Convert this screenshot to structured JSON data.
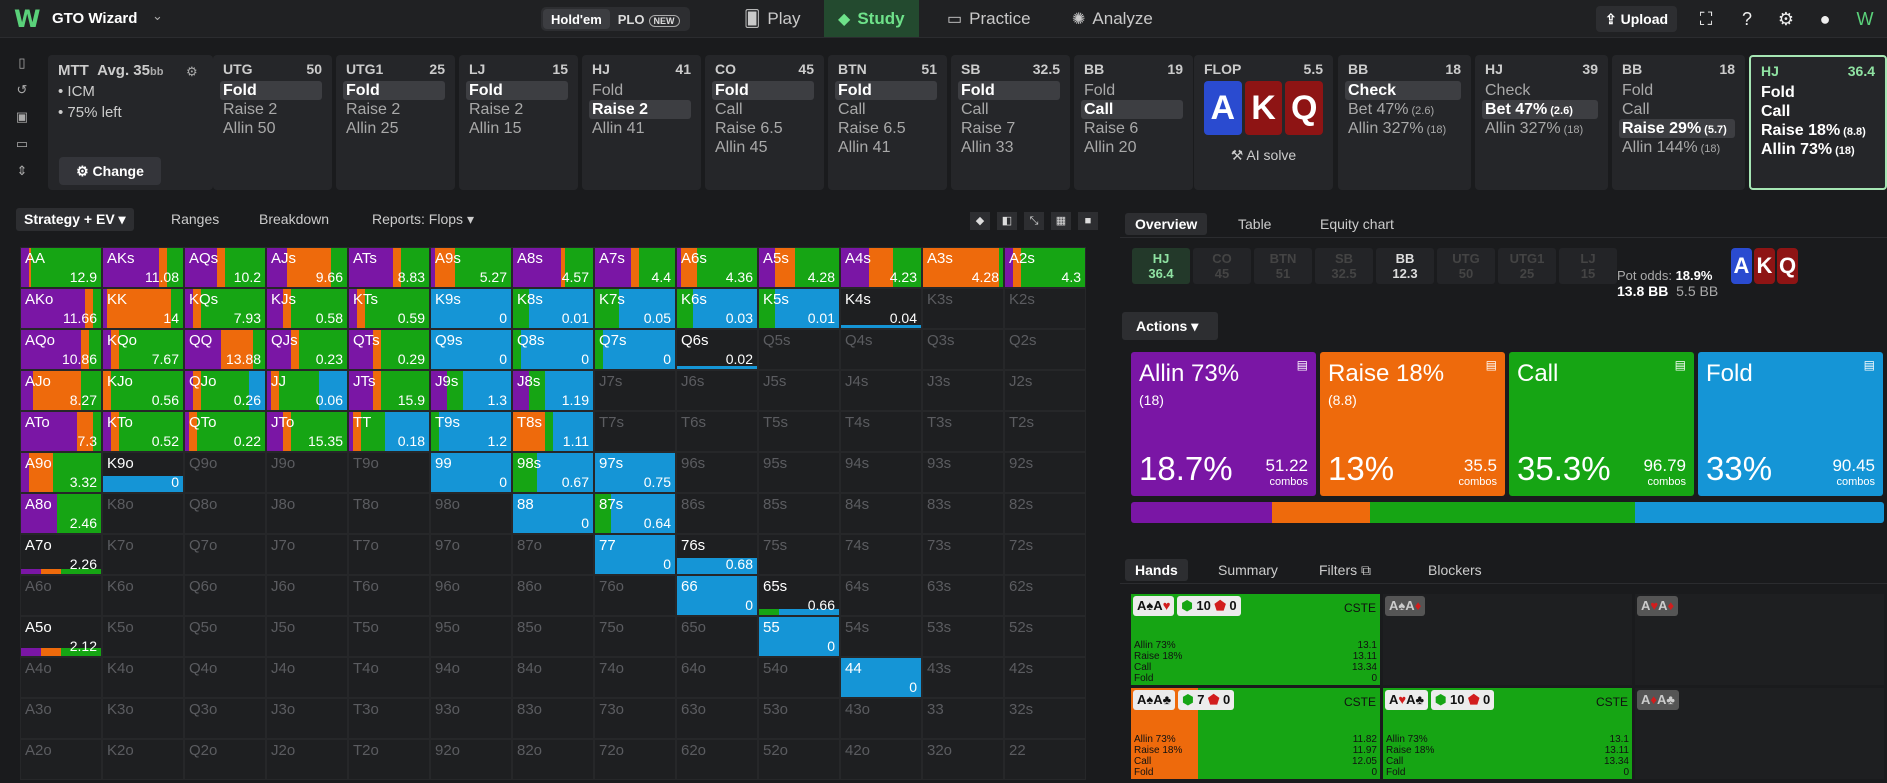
{
  "app": {
    "name": "GTO Wizard",
    "logo": "W"
  },
  "modes": {
    "holdem": "Hold'em",
    "plo": "PLO",
    "plo_badge": "NEW"
  },
  "nav": [
    {
      "label": "Play",
      "icon": "cards-icon"
    },
    {
      "label": "Study",
      "icon": "graduation-icon"
    },
    {
      "label": "Practice",
      "icon": "gamepad-icon"
    },
    {
      "label": "Analyze",
      "icon": "bulb-icon"
    }
  ],
  "upload_label": "Upload",
  "mtt": {
    "title": "MTT",
    "avg": "Avg. 35",
    "avg_unit": "bb",
    "line1": "• ICM",
    "line2": "• 75% left",
    "change": "Change"
  },
  "positions": [
    {
      "pos": "UTG",
      "stack": "50",
      "options": [
        "Fold",
        "Raise 2",
        "Allin 50"
      ],
      "sel": 0
    },
    {
      "pos": "UTG1",
      "stack": "25",
      "options": [
        "Fold",
        "Raise 2",
        "Allin 25"
      ],
      "sel": 0
    },
    {
      "pos": "LJ",
      "stack": "15",
      "options": [
        "Fold",
        "Raise 2",
        "Allin 15"
      ],
      "sel": 0
    },
    {
      "pos": "HJ",
      "stack": "41",
      "options": [
        "Fold",
        "Raise 2",
        "Allin 41"
      ],
      "sel": 1
    },
    {
      "pos": "CO",
      "stack": "45",
      "options": [
        "Fold",
        "Call",
        "Raise 6.5",
        "Allin 45"
      ],
      "sel": 0
    },
    {
      "pos": "BTN",
      "stack": "51",
      "options": [
        "Fold",
        "Call",
        "Raise 6.5",
        "Allin 41"
      ],
      "sel": 0
    },
    {
      "pos": "SB",
      "stack": "32.5",
      "options": [
        "Fold",
        "Call",
        "Raise 7",
        "Allin 33"
      ],
      "sel": 0
    },
    {
      "pos": "BB",
      "stack": "19",
      "options": [
        "Fold",
        "Call",
        "Raise 6",
        "Allin 20"
      ],
      "sel": 1
    }
  ],
  "flop": {
    "label": "FLOP",
    "pot": "5.5",
    "cards": [
      "A",
      "K",
      "Q"
    ],
    "ai": "AI solve"
  },
  "streets": [
    {
      "pos": "BB",
      "stack": "18",
      "options": [
        {
          "t": "Check"
        },
        {
          "t": "Bet 47%",
          "s": "(2.6)"
        },
        {
          "t": "Allin 327%",
          "s": "(18)"
        }
      ],
      "sel": 0
    },
    {
      "pos": "HJ",
      "stack": "39",
      "options": [
        {
          "t": "Check"
        },
        {
          "t": "Bet 47%",
          "s": "(2.6)"
        },
        {
          "t": "Allin 327%",
          "s": "(18)"
        }
      ],
      "sel": 1
    },
    {
      "pos": "BB",
      "stack": "18",
      "options": [
        {
          "t": "Fold"
        },
        {
          "t": "Call"
        },
        {
          "t": "Raise 29%",
          "s": "(5.7)"
        },
        {
          "t": "Allin 144%",
          "s": "(18)"
        }
      ],
      "sel": 2
    },
    {
      "pos": "HJ",
      "stack": "36.4",
      "options": [
        {
          "t": "Fold"
        },
        {
          "t": "Call"
        },
        {
          "t": "Raise 18%",
          "s": "(8.8)"
        },
        {
          "t": "Allin 73%",
          "s": "(18)"
        }
      ],
      "sel": -1
    }
  ],
  "left_tabs": {
    "strategy": "Strategy + EV",
    "ranges": "Ranges",
    "breakdown": "Breakdown",
    "reports": "Reports: Flops"
  },
  "colors": {
    "allin": "#7a16a5",
    "raise": "#ee6a0c",
    "call": "#16a514",
    "fold": "#1595d6"
  },
  "grid": [
    [
      "AA|12.9|a10r2c88f0",
      "AKs|11.08|a70r10c20f0",
      "AQs|10.2|a40r10c50f0",
      "AJs|9.66|a25r55c20f0",
      "ATs|8.83|a55r10c35f0",
      "A9s|5.27|a5r25c70f0",
      "A8s|4.57|a60r5c35f0",
      "A7s|4.4|a45r10c45f0",
      "A6s|4.36|a5r20c75f0",
      "A5s|4.28|a20r25c55f0",
      "A4s|4.23|a35r30c35f0",
      "A3s|4.28|a0r95c5f0",
      "A2s|4.3|a10r10c80f0"
    ],
    [
      "AKo|11.66|a80r10c10f0",
      "KK|14|a5r80c15f0",
      "KQs|7.93|a10r10c80f0",
      "KJs|0.58|a20r10c70f0",
      "KTs|0.59|a10r10c80f0",
      "K9s|0|a0r0c0f100",
      "K8s|0.01|a0r0c20f80",
      "K7s|0.05|a0r0c30f70",
      "K6s|0.03|a0r0c20f80",
      "K5s|0.01|a0r0c20f80",
      "K4s|0.04|x",
      "K3s||d",
      "K2s||d"
    ],
    [
      "AQo|10.86|a75r10c15f0",
      "KQo|7.67|a10r10c80f0",
      "QQ|13.88|a45r40c15f0",
      "QJs|0.23|a30r10c60f0",
      "QTs|0.29|a30r10c60f0",
      "Q9s|0|a0r0c0f100",
      "Q8s|0|a0r0c10f90",
      "Q7s|0|a0r0c10f90",
      "Q6s|0.02|x",
      "Q5s||d",
      "Q4s||d",
      "Q3s||d",
      "Q2s||d"
    ],
    [
      "AJo|8.27|a15r60c25f0",
      "KJo|0.56|a0r10c90f0",
      "QJo|0.26|a10r10c60f20",
      "JJ|0.06|a5r10c50f35",
      "JTs|15.9|a30r10c60f0",
      "J9s|1.3|a20r0c20f60",
      "J8s|1.19|a20r0c20f60",
      "J7s||d",
      "J6s||d",
      "J5s||d",
      "J4s||d",
      "J3s||d",
      "J2s||d"
    ],
    [
      "ATo|7.3|a70r20c10f0",
      "KTo|0.52|a10r10c80f0",
      "QTo|0.22|a5r10c85f0",
      "JTo|15.35|a20r10c70f0",
      "TT|0.18|a5r10c30f55",
      "T9s|1.2|a0r0c10f90",
      "T8s|1.11|a0r40c10f50",
      "T7s||d",
      "T6s||d",
      "T5s||d",
      "T4s||d",
      "T3s||d",
      "T2s||d"
    ],
    [
      "A9o|3.32|a10r30c60f0",
      "K9o|0|h",
      "Q9o||d",
      "J9o||d",
      "T9o||d",
      "99|0|a0r0c0f100",
      "98s|0.67|a0r0c30f70",
      "97s|0.75|a0r0c0f100",
      "96s||d",
      "95s||d",
      "94s||d",
      "93s||d",
      "92s||d"
    ],
    [
      "A8o|2.46|a45r0c55f0",
      "K8o||d",
      "Q8o||d",
      "J8o||d",
      "T8o||d",
      "98o||d",
      "88|0|a0r0c0f100",
      "87s|0.64|a0r0c20f80",
      "86s||d",
      "85s||d",
      "84s||d",
      "83s||d",
      "82s||d"
    ],
    [
      "A7o|2.26|s",
      "K7o||d",
      "Q7o||d",
      "J7o||d",
      "T7o||d",
      "97o||d",
      "87o||d",
      "77|0|a0r0c0f100",
      "76s|0.68|h2",
      "75s||d",
      "74s||d",
      "73s||d",
      "72s||d"
    ],
    [
      "A6o||d",
      "K6o||d",
      "Q6o||d",
      "J6o||d",
      "T6o||d",
      "96o||d",
      "86o||d",
      "76o||d",
      "66|0|a0r0c0f100",
      "65s|0.66|h3",
      "64s||d",
      "63s||d",
      "62s||d"
    ],
    [
      "A5o|2.12|s2",
      "K5o||d",
      "Q5o||d",
      "J5o||d",
      "T5o||d",
      "95o||d",
      "85o||d",
      "75o||d",
      "65o||d",
      "55|0|a0r0c0f100",
      "54s||d",
      "53s||d",
      "52s||d"
    ],
    [
      "A4o||d",
      "K4o||d",
      "Q4o||d",
      "J4o||d",
      "T4o||d",
      "94o||d",
      "84o||d",
      "74o||d",
      "64o||d",
      "54o||d",
      "44|0|a0r0c0f100",
      "43s||d",
      "42s||d"
    ],
    [
      "A3o||d",
      "K3o||d",
      "Q3o||d",
      "J3o||d",
      "T3o||d",
      "93o||d",
      "83o||d",
      "73o||d",
      "63o||d",
      "53o||d",
      "43o||d",
      "33||d",
      "32s||d"
    ],
    [
      "A2o||d",
      "K2o||d",
      "Q2o||d",
      "J2o||d",
      "T2o||d",
      "92o||d",
      "82o||d",
      "72o||d",
      "62o||d",
      "52o||d",
      "42o||d",
      "32o||d",
      "22||d"
    ]
  ],
  "right_tabs": {
    "overview": "Overview",
    "table": "Table",
    "equity": "Equity chart"
  },
  "pos_chips": [
    {
      "p": "HJ",
      "s": "36.4"
    },
    {
      "p": "CO",
      "s": "45"
    },
    {
      "p": "BTN",
      "s": "51"
    },
    {
      "p": "SB",
      "s": "32.5"
    },
    {
      "p": "BB",
      "s": "12.3"
    },
    {
      "p": "UTG",
      "s": "50"
    },
    {
      "p": "UTG1",
      "s": "25"
    },
    {
      "p": "LJ",
      "s": "15"
    }
  ],
  "pot": {
    "bb": "13.8 BB",
    "bb2": "5.5 BB",
    "odds_label": "Pot odds:",
    "odds": "18.9%"
  },
  "actions_label": "Actions",
  "actions": [
    {
      "t": "Allin 73%",
      "s": "(18)",
      "pct": "18.7%",
      "combos": "51.22",
      "c": "allin"
    },
    {
      "t": "Raise 18%",
      "s": "(8.8)",
      "pct": "13%",
      "combos": "35.5",
      "c": "raise"
    },
    {
      "t": "Call",
      "s": "",
      "pct": "35.3%",
      "combos": "96.79",
      "c": "call"
    },
    {
      "t": "Fold",
      "s": "",
      "pct": "33%",
      "combos": "90.45",
      "c": "fold"
    }
  ],
  "combos_label": "combos",
  "hands_tabs": {
    "hands": "Hands",
    "summary": "Summary",
    "filters": "Filters",
    "blockers": "Blockers"
  },
  "hand_cells": [
    {
      "cards": "A♠A♥",
      "eq": "10",
      "bl": "0",
      "tag": "CSTE",
      "lines": [
        [
          "Allin 73%",
          "13.1"
        ],
        [
          "Raise 18%",
          "13.11"
        ],
        [
          "Call",
          "13.34"
        ],
        [
          "Fold",
          "0"
        ]
      ],
      "mix": "c100"
    },
    {
      "cards": "A♠A♦",
      "gray": true
    },
    {
      "cards": "A♥A♦",
      "gray": true
    },
    {
      "cards": "A♠A♣",
      "eq": "7",
      "bl": "0",
      "tag": "CSTE",
      "lines": [
        [
          "Allin 73%",
          "11.82"
        ],
        [
          "Raise 18%",
          "11.97"
        ],
        [
          "Call",
          "12.05"
        ],
        [
          "Fold",
          "0"
        ]
      ],
      "mix": "r27c73"
    },
    {
      "cards": "A♥A♣",
      "eq": "10",
      "bl": "0",
      "tag": "CSTE",
      "lines": [
        [
          "Allin 73%",
          "13.1"
        ],
        [
          "Raise 18%",
          "13.11"
        ],
        [
          "Call",
          "13.34"
        ],
        [
          "Fold",
          "0"
        ]
      ],
      "mix": "c100"
    },
    {
      "cards": "A♦A♣",
      "gray": true
    }
  ]
}
